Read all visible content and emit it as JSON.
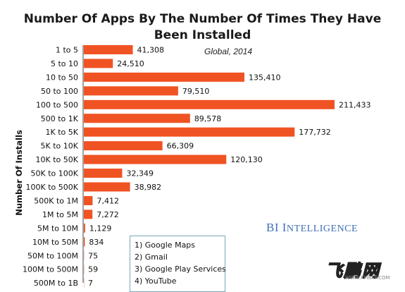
{
  "chart_data": {
    "type": "bar",
    "orientation": "horizontal",
    "title": "Number Of Apps By The Number Of Times They Have Been Installed",
    "title_lines": [
      "Number Of Apps By The Number Of Times They Have",
      "Been Installed"
    ],
    "subtitle": "Global, 2014",
    "ylabel": "Number Of Installs",
    "xlabel": "",
    "bar_color": "#f05323",
    "categories": [
      "1 to 5",
      "5 to 10",
      "10 to 50",
      "50 to 100",
      "100 to 500",
      "500 to 1K",
      "1K to 5K",
      "5K to 10K",
      "10K to 50K",
      "50K to 100K",
      "100K to 500K",
      "500K to 1M",
      "1M to 5M",
      "5M to 10M",
      "10M to 50M",
      "50M to 100M",
      "100M to 500M",
      "500M to 1B"
    ],
    "values": [
      41308,
      24510,
      135410,
      79510,
      211433,
      89578,
      177732,
      66309,
      120130,
      32349,
      38982,
      7412,
      7272,
      1129,
      834,
      75,
      59,
      7
    ],
    "value_labels": [
      "41,308",
      "24,510",
      "135,410",
      "79,510",
      "211,433",
      "89,578",
      "177,732",
      "66,309",
      "120,130",
      "32,349",
      "38,982",
      "7,412",
      "7,272",
      "1,129",
      "834",
      "75",
      "59",
      "7"
    ],
    "xlim": [
      0,
      211433
    ],
    "grid": false,
    "legend": "none"
  },
  "brand": {
    "initials": "BI",
    "word_first": "I",
    "word_rest": "NTELLIGENCE",
    "color": "#3f6fb6"
  },
  "callout": {
    "items": [
      "1) Google Maps",
      "2) Gmail",
      "3) Google Play Services",
      "4) YouTube"
    ]
  },
  "watermark": {
    "text": "飞鹏网",
    "url": "WWW.FPWAP.COM"
  }
}
